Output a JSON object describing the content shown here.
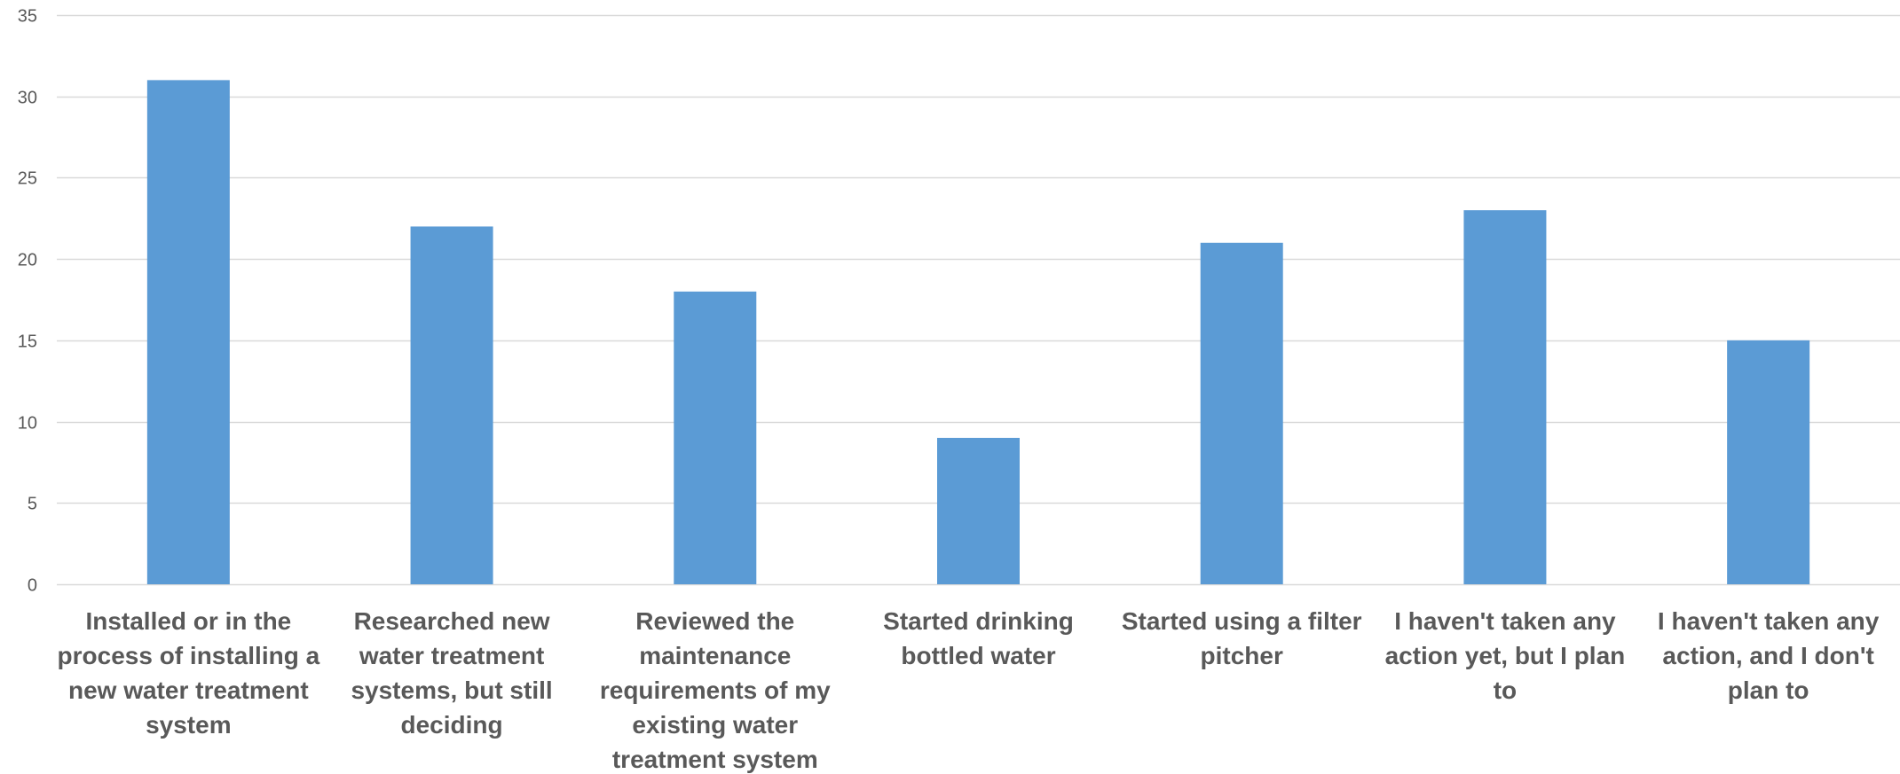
{
  "colors": {
    "bar": "#5B9BD5",
    "grid": "#D9D9D9",
    "text": "#595959"
  },
  "chart_data": {
    "type": "bar",
    "title": "",
    "xlabel": "",
    "ylabel": "",
    "ylim": [
      0,
      35
    ],
    "yticks": [
      0,
      5,
      10,
      15,
      20,
      25,
      30,
      35
    ],
    "grid": true,
    "legend": "none",
    "categories": [
      "Installed or in the process of installing a new water treatment system",
      "Researched new water treatment systems, but still deciding",
      "Reviewed the maintenance requirements of my existing water treatment system",
      "Started drinking bottled water",
      "Started using a filter pitcher",
      "I haven't taken any action yet, but I plan to",
      "I haven't taken any action, and I don't plan to"
    ],
    "category_label_lines": [
      [
        "Installed or in the",
        "process of installing a",
        "new water treatment",
        "system"
      ],
      [
        "Researched new",
        "water treatment",
        "systems, but still",
        "deciding"
      ],
      [
        "Reviewed the",
        "maintenance",
        "requirements of my",
        "existing water",
        "treatment system"
      ],
      [
        "Started drinking",
        "bottled water"
      ],
      [
        "Started using a filter",
        "pitcher"
      ],
      [
        "I haven't taken any",
        "action yet, but I plan",
        "to"
      ],
      [
        "I haven't taken any",
        "action, and I don't",
        "plan to"
      ]
    ],
    "values": [
      31,
      22,
      18,
      9,
      21,
      23,
      15
    ]
  }
}
